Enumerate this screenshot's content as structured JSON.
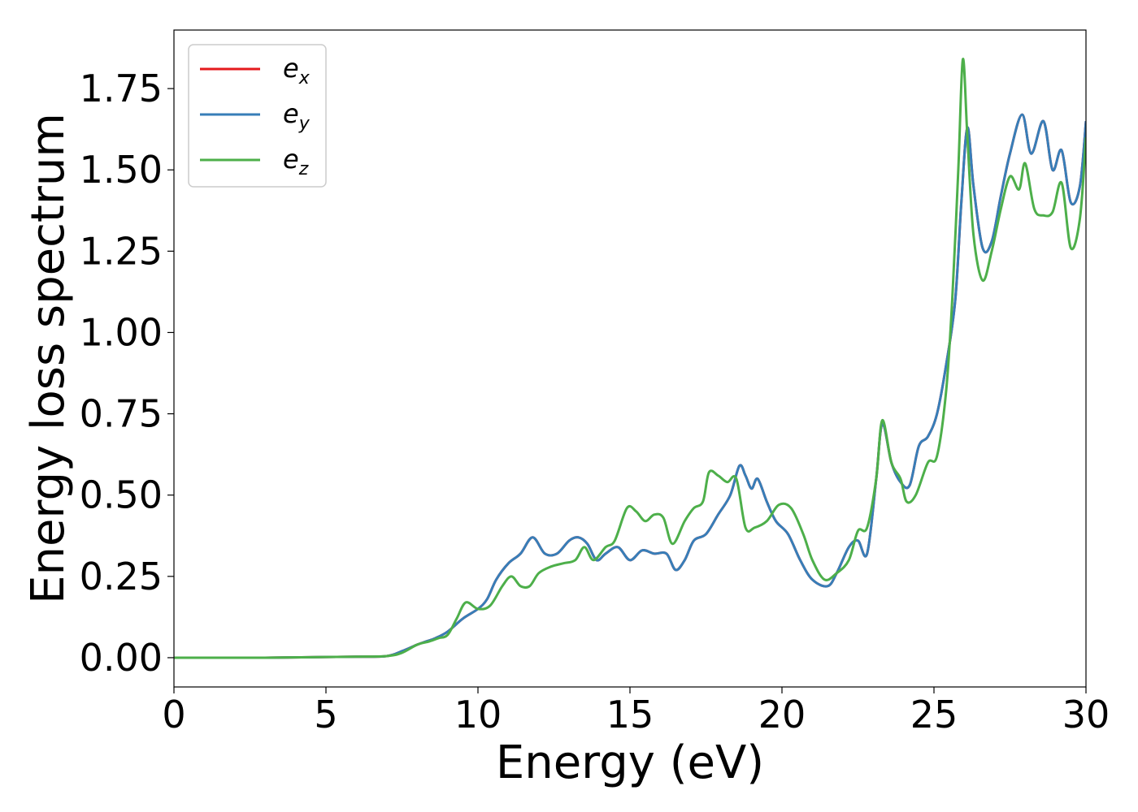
{
  "chart_data": {
    "type": "line",
    "xlabel": "Energy (eV)",
    "ylabel": "Energy loss spectrum",
    "xlim": [
      0,
      30
    ],
    "ylim": [
      -0.09,
      1.93
    ],
    "xticks": [
      0,
      5,
      10,
      15,
      20,
      25,
      30
    ],
    "xtick_labels": [
      "0",
      "5",
      "10",
      "15",
      "20",
      "25",
      "30"
    ],
    "yticks": [
      0.0,
      0.25,
      0.5,
      0.75,
      1.0,
      1.25,
      1.5,
      1.75
    ],
    "ytick_labels": [
      "0.00",
      "0.25",
      "0.50",
      "0.75",
      "1.00",
      "1.25",
      "1.50",
      "1.75"
    ],
    "grid": false,
    "legend_position": "top-left",
    "series": [
      {
        "name": "e",
        "subscript": "x",
        "color": "#e41a1c",
        "x": [
          0,
          3,
          5,
          6,
          7,
          7.5,
          8,
          8.3,
          8.6,
          9,
          9.5,
          10,
          10.3,
          10.6,
          11,
          11.4,
          11.8,
          12.2,
          12.6,
          13,
          13.3,
          13.6,
          13.9,
          14.2,
          14.6,
          15,
          15.4,
          15.8,
          16.2,
          16.5,
          16.8,
          17.1,
          17.5,
          17.9,
          18.3,
          18.6,
          18.8,
          19,
          19.2,
          19.5,
          19.8,
          20.2,
          20.6,
          21,
          21.5,
          21.8,
          22.2,
          22.5,
          22.8,
          23.1,
          23.3,
          23.6,
          23.9,
          24.2,
          24.5,
          24.8,
          25.1,
          25.4,
          25.7,
          25.9,
          26.1,
          26.3,
          26.6,
          26.9,
          27.2,
          27.5,
          27.9,
          28.2,
          28.6,
          28.9,
          29.2,
          29.5,
          29.8,
          30
        ],
        "y": [
          0,
          0,
          0.002,
          0.003,
          0.005,
          0.02,
          0.04,
          0.05,
          0.06,
          0.08,
          0.12,
          0.15,
          0.18,
          0.24,
          0.29,
          0.32,
          0.37,
          0.32,
          0.32,
          0.36,
          0.37,
          0.35,
          0.3,
          0.32,
          0.34,
          0.3,
          0.33,
          0.32,
          0.32,
          0.27,
          0.3,
          0.36,
          0.38,
          0.44,
          0.5,
          0.59,
          0.56,
          0.52,
          0.55,
          0.48,
          0.42,
          0.38,
          0.3,
          0.24,
          0.22,
          0.26,
          0.34,
          0.36,
          0.32,
          0.55,
          0.72,
          0.6,
          0.54,
          0.53,
          0.65,
          0.68,
          0.75,
          0.9,
          1.1,
          1.4,
          1.63,
          1.45,
          1.26,
          1.28,
          1.42,
          1.55,
          1.67,
          1.55,
          1.65,
          1.5,
          1.56,
          1.4,
          1.45,
          1.65
        ]
      },
      {
        "name": "e",
        "subscript": "y",
        "color": "#377eb8",
        "x": [
          0,
          3,
          5,
          6,
          7,
          7.5,
          8,
          8.3,
          8.6,
          9,
          9.5,
          10,
          10.3,
          10.6,
          11,
          11.4,
          11.8,
          12.2,
          12.6,
          13,
          13.3,
          13.6,
          13.9,
          14.2,
          14.6,
          15,
          15.4,
          15.8,
          16.2,
          16.5,
          16.8,
          17.1,
          17.5,
          17.9,
          18.3,
          18.6,
          18.8,
          19,
          19.2,
          19.5,
          19.8,
          20.2,
          20.6,
          21,
          21.5,
          21.8,
          22.2,
          22.5,
          22.8,
          23.1,
          23.3,
          23.6,
          23.9,
          24.2,
          24.5,
          24.8,
          25.1,
          25.4,
          25.7,
          25.9,
          26.1,
          26.3,
          26.6,
          26.9,
          27.2,
          27.5,
          27.9,
          28.2,
          28.6,
          28.9,
          29.2,
          29.5,
          29.8,
          30
        ],
        "y": [
          0,
          0,
          0.002,
          0.003,
          0.005,
          0.02,
          0.04,
          0.05,
          0.06,
          0.08,
          0.12,
          0.15,
          0.18,
          0.24,
          0.29,
          0.32,
          0.37,
          0.32,
          0.32,
          0.36,
          0.37,
          0.35,
          0.3,
          0.32,
          0.34,
          0.3,
          0.33,
          0.32,
          0.32,
          0.27,
          0.3,
          0.36,
          0.38,
          0.44,
          0.5,
          0.59,
          0.56,
          0.52,
          0.55,
          0.48,
          0.42,
          0.38,
          0.3,
          0.24,
          0.22,
          0.26,
          0.34,
          0.36,
          0.32,
          0.55,
          0.72,
          0.6,
          0.54,
          0.53,
          0.65,
          0.68,
          0.75,
          0.9,
          1.1,
          1.4,
          1.63,
          1.45,
          1.26,
          1.28,
          1.42,
          1.55,
          1.67,
          1.55,
          1.65,
          1.5,
          1.56,
          1.4,
          1.45,
          1.65
        ]
      },
      {
        "name": "e",
        "subscript": "z",
        "color": "#4daf4a",
        "x": [
          0,
          3,
          5,
          6,
          7,
          7.5,
          8,
          8.4,
          8.7,
          9,
          9.3,
          9.6,
          10,
          10.4,
          10.8,
          11.1,
          11.4,
          11.7,
          12,
          12.4,
          12.8,
          13.2,
          13.5,
          13.8,
          14.2,
          14.5,
          14.9,
          15.2,
          15.5,
          15.8,
          16.1,
          16.4,
          16.8,
          17.1,
          17.4,
          17.6,
          17.9,
          18.2,
          18.5,
          18.8,
          19.1,
          19.5,
          19.9,
          20.3,
          20.7,
          21,
          21.4,
          21.8,
          22.2,
          22.5,
          22.8,
          23.1,
          23.3,
          23.6,
          23.9,
          24.1,
          24.4,
          24.8,
          25.1,
          25.4,
          25.6,
          25.8,
          25.95,
          26.1,
          26.3,
          26.6,
          26.9,
          27.2,
          27.5,
          27.8,
          28,
          28.3,
          28.6,
          28.9,
          29.2,
          29.5,
          29.8,
          30
        ],
        "y": [
          0,
          0,
          0.002,
          0.003,
          0.005,
          0.015,
          0.04,
          0.05,
          0.06,
          0.07,
          0.12,
          0.17,
          0.15,
          0.16,
          0.22,
          0.25,
          0.22,
          0.22,
          0.26,
          0.28,
          0.29,
          0.3,
          0.34,
          0.3,
          0.34,
          0.36,
          0.46,
          0.45,
          0.42,
          0.44,
          0.43,
          0.35,
          0.42,
          0.46,
          0.48,
          0.57,
          0.56,
          0.54,
          0.55,
          0.4,
          0.4,
          0.42,
          0.47,
          0.46,
          0.38,
          0.3,
          0.24,
          0.26,
          0.3,
          0.39,
          0.4,
          0.55,
          0.73,
          0.6,
          0.55,
          0.48,
          0.5,
          0.6,
          0.62,
          0.82,
          1.1,
          1.5,
          1.84,
          1.6,
          1.3,
          1.16,
          1.25,
          1.38,
          1.48,
          1.44,
          1.52,
          1.38,
          1.36,
          1.37,
          1.46,
          1.26,
          1.35,
          1.6
        ]
      }
    ]
  }
}
